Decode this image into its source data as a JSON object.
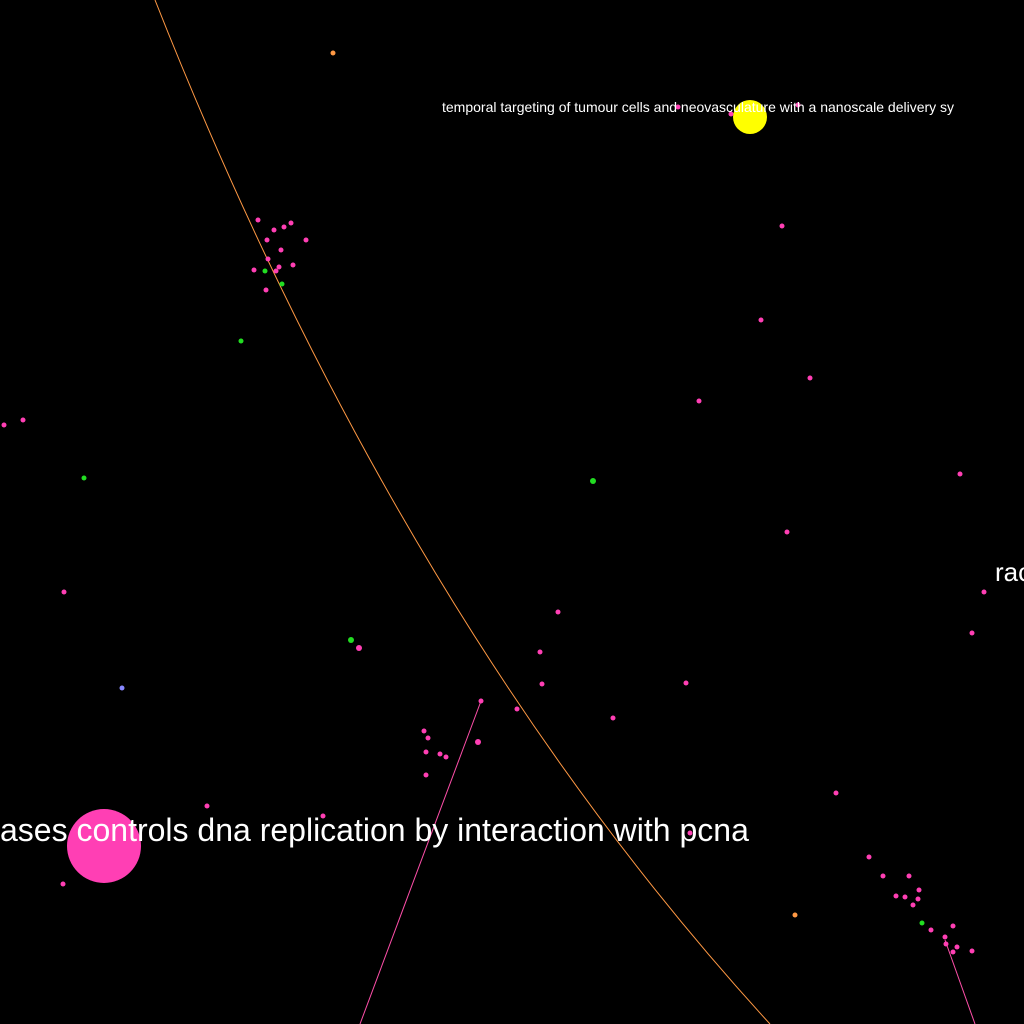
{
  "graph": {
    "background": "#000000",
    "labels": {
      "paper_top": "temporal targeting of tumour cells and neovasculature with a nanoscale delivery sy",
      "paper_bottom": "ases controls dna replication by interaction with pcna",
      "paper_right": "rac"
    },
    "colors": {
      "magenta": "#ff3fb4",
      "green": "#22dd22",
      "orange": "#ff9944",
      "yellow": "#ffff00",
      "blue": "#8888ff",
      "edge_orange": "#ff9944",
      "edge_pink": "#ff4faa"
    }
  }
}
